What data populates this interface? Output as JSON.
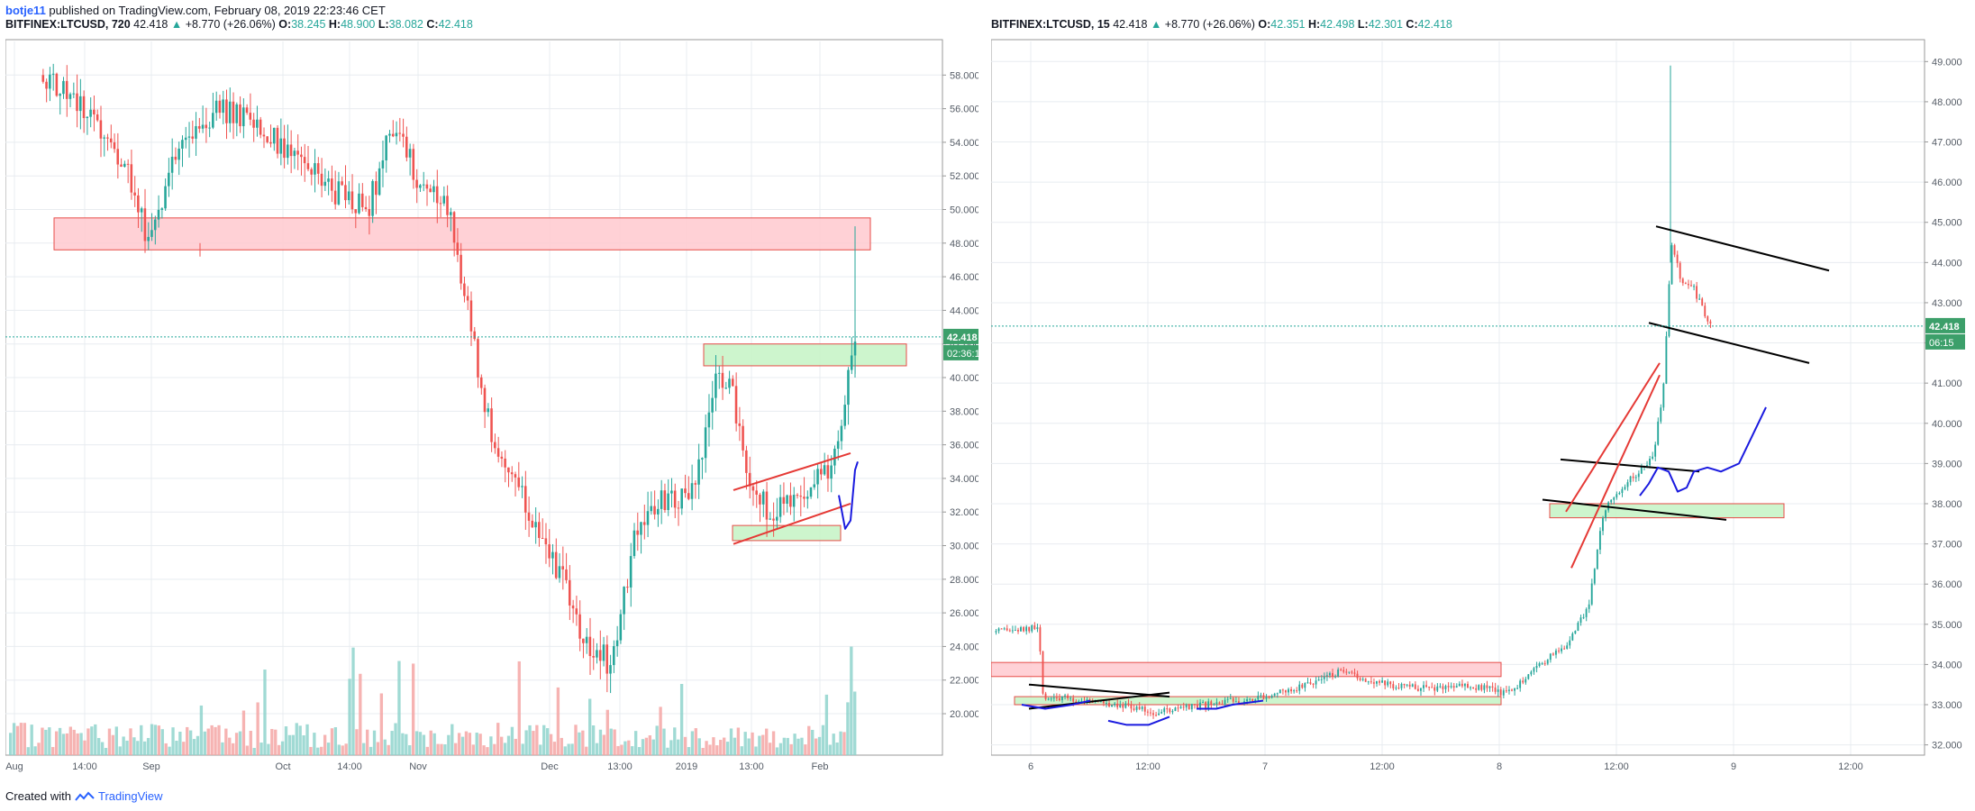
{
  "header": {
    "user": "botje11",
    "text": " published on TradingView.com, February 08, 2019 22:23:46 CET"
  },
  "colors": {
    "up": "#26a69a",
    "down": "#ef5350",
    "grid": "#e8ecf0",
    "axis": "#555c66",
    "price_line": "#26a69a",
    "zone_red_fill": "#ffcdd2",
    "zone_red_stroke": "#e53935",
    "zone_green_fill": "#c8f5c8",
    "zone_green_stroke": "#e53935",
    "label_bg": "#3c9f6a"
  },
  "left_chart": {
    "symbol": "BITFINEX:LTCUSD, 720",
    "last": "42.418",
    "arrow": "▲",
    "change": "+8.770 (+26.06%)",
    "ohlc": [
      {
        "k": "O:",
        "v": "38.245"
      },
      {
        "k": "H:",
        "v": "48.900"
      },
      {
        "k": "L:",
        "v": "38.082"
      },
      {
        "k": "C:",
        "v": "42.418"
      }
    ],
    "price_label": "42.418",
    "countdown": "02:36:15",
    "y_ticks": [
      "58.000",
      "56.000",
      "54.000",
      "52.000",
      "50.000",
      "48.000",
      "46.000",
      "44.000",
      "42.000",
      "40.000",
      "38.000",
      "36.000",
      "34.000",
      "32.000",
      "30.000",
      "28.000",
      "26.000",
      "24.000",
      "22.000",
      "20.000"
    ],
    "x_ticks": [
      "Aug",
      "14:00",
      "Sep",
      "Oct",
      "14:00",
      "Nov",
      "Dec",
      "13:00",
      "2019",
      "13:00",
      "Feb"
    ]
  },
  "right_chart": {
    "symbol": "BITFINEX:LTCUSD, 15",
    "last": "42.418",
    "arrow": "▲",
    "change": "+8.770 (+26.06%)",
    "ohlc": [
      {
        "k": "O:",
        "v": "42.351"
      },
      {
        "k": "H:",
        "v": "42.498"
      },
      {
        "k": "L:",
        "v": "42.301"
      },
      {
        "k": "C:",
        "v": "42.418"
      }
    ],
    "price_label": "42.418",
    "countdown": "06:15",
    "y_ticks": [
      "49.000",
      "48.000",
      "47.000",
      "46.000",
      "45.000",
      "44.000",
      "43.000",
      "42.000",
      "41.000",
      "40.000",
      "39.000",
      "38.000",
      "37.000",
      "36.000",
      "35.000",
      "34.000",
      "33.000",
      "32.000"
    ],
    "x_ticks": [
      "6",
      "12:00",
      "7",
      "12:00",
      "8",
      "12:00",
      "9",
      "12:00"
    ]
  },
  "footer": {
    "created_with": "Created with",
    "brand": "TradingView"
  },
  "chart_data": [
    {
      "type": "candlestick",
      "symbol": "BITFINEX:LTCUSD",
      "interval": "720",
      "y_axis_range": [
        18.5,
        60.0
      ],
      "last_price": 42.418,
      "approx_close_path": [
        {
          "x": "Aug",
          "y": 57
        },
        {
          "x": "Sep",
          "y": 52
        },
        {
          "x": "Sep",
          "y": 48
        },
        {
          "x": "Oct",
          "y": 55
        },
        {
          "x": "14:00",
          "y": 52
        },
        {
          "x": "Nov",
          "y": 56
        },
        {
          "x": "Nov",
          "y": 50
        },
        {
          "x": "Nov",
          "y": 42
        },
        {
          "x": "Dec",
          "y": 34
        },
        {
          "x": "Dec",
          "y": 30
        },
        {
          "x": "13:00",
          "y": 24
        },
        {
          "x": "13:00",
          "y": 32
        },
        {
          "x": "2019",
          "y": 36
        },
        {
          "x": "2019",
          "y": 40
        },
        {
          "x": "13:00",
          "y": 33
        },
        {
          "x": "Feb",
          "y": 34
        },
        {
          "x": "Feb",
          "y": 42.4
        }
      ],
      "grid": true
    },
    {
      "type": "candlestick",
      "symbol": "BITFINEX:LTCUSD",
      "interval": "15",
      "y_axis_range": [
        31.7,
        49.5
      ],
      "last_price": 42.418,
      "approx_close_path": [
        {
          "x": "6",
          "y": 34.8
        },
        {
          "x": "6",
          "y": 33.2
        },
        {
          "x": "12:00",
          "y": 32.9
        },
        {
          "x": "7",
          "y": 33.3
        },
        {
          "x": "12:00",
          "y": 33.8
        },
        {
          "x": "8",
          "y": 33.4
        },
        {
          "x": "8",
          "y": 33.2
        },
        {
          "x": "12:00",
          "y": 37.5
        },
        {
          "x": "12:00",
          "y": 39
        },
        {
          "x": "12:00",
          "y": 44.5
        },
        {
          "x": "9",
          "y": 42.4
        }
      ],
      "grid": true
    }
  ]
}
